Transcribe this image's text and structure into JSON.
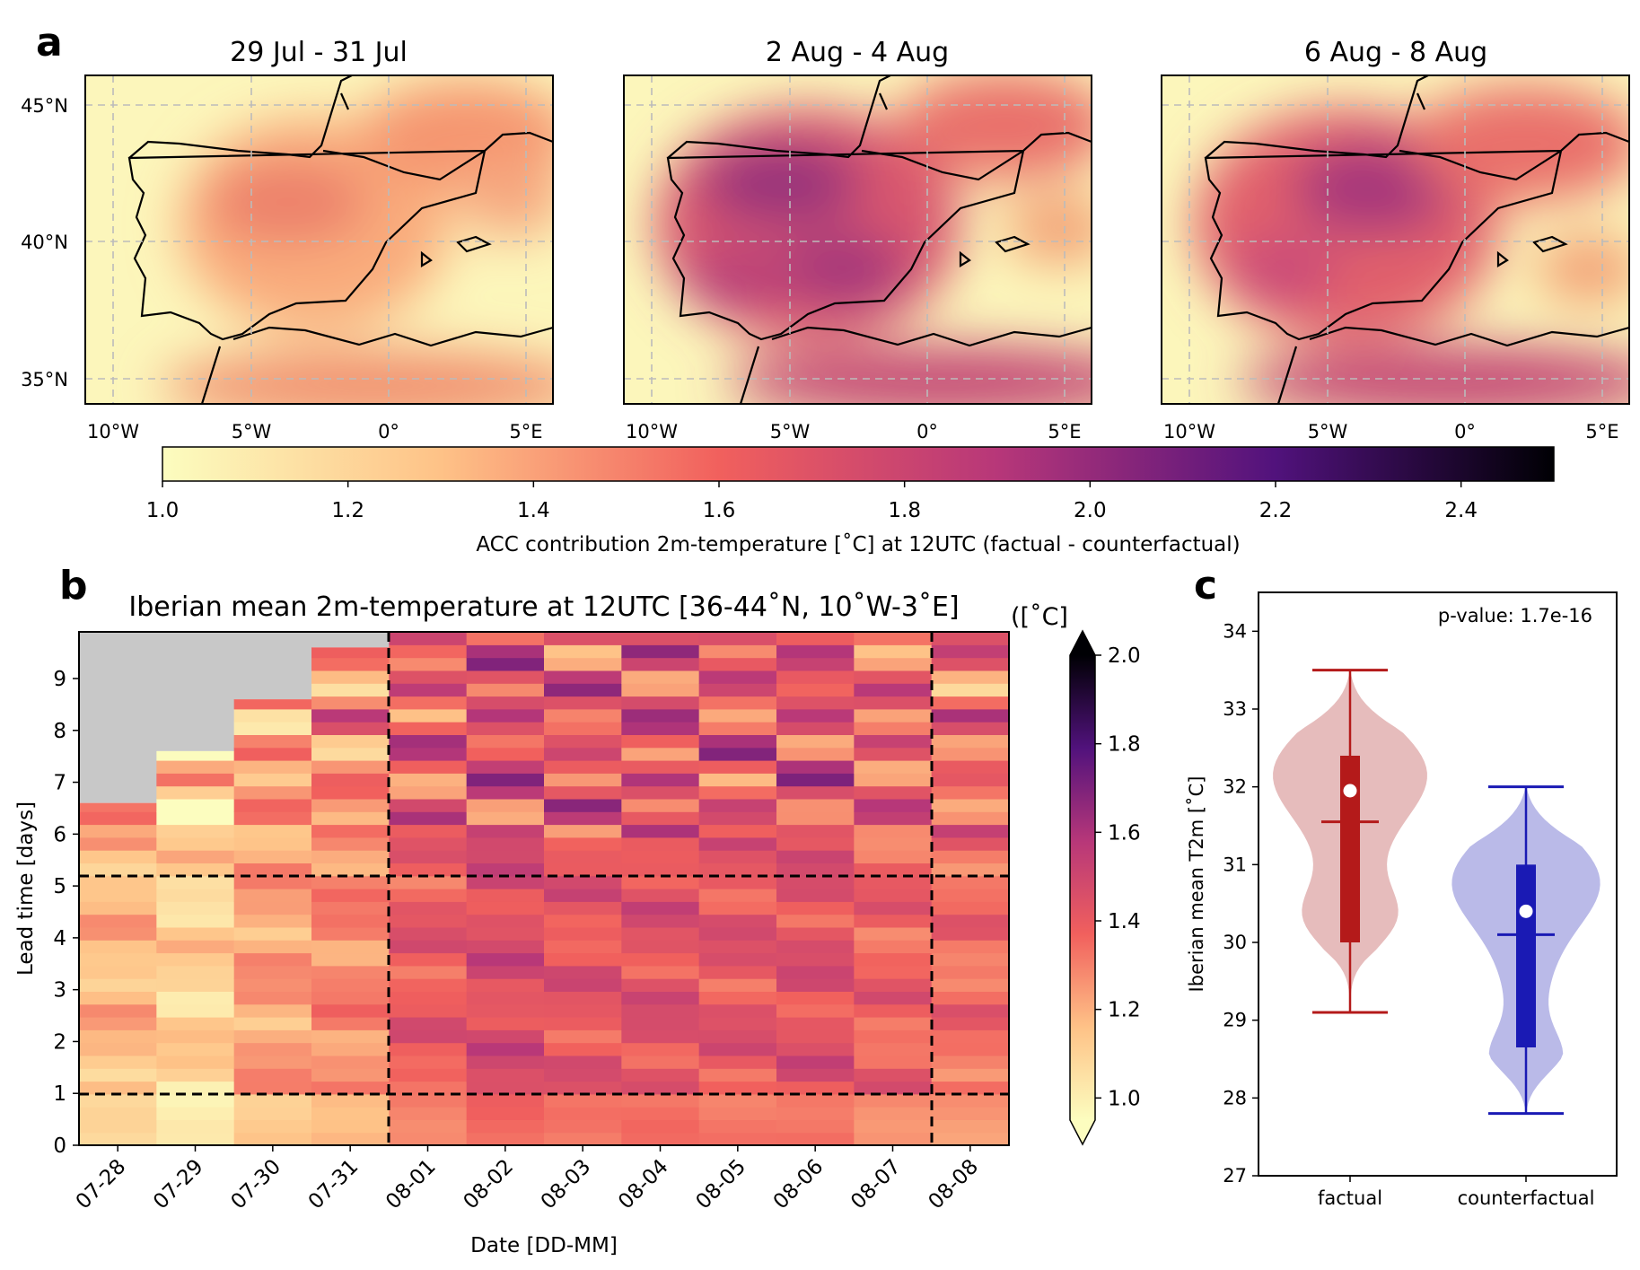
{
  "panel_letters": {
    "a": "a",
    "b": "b",
    "c": "c"
  },
  "maps": {
    "panel_titles": [
      "29 Jul - 31 Jul",
      "2 Aug - 4 Aug",
      "6 Aug - 8 Aug"
    ],
    "lat_ticks": [
      "45°N",
      "40°N",
      "35°N"
    ],
    "lon_ticks": [
      "10°W",
      "5°W",
      "0°",
      "5°E"
    ],
    "colorbar": {
      "ticks": [
        "1.0",
        "1.2",
        "1.4",
        "1.6",
        "1.8",
        "2.0",
        "2.2",
        "2.4"
      ],
      "min": 1.0,
      "max": 2.5,
      "label": "ACC contribution 2m-temperature [˚C] at 12UTC (factual - counterfactual)"
    }
  },
  "chart_data": [
    {
      "type": "heatmap",
      "title": "Iberian mean 2m-temperature at 12UTC [36-44˚N, 10˚W-3˚E]",
      "xlabel": "Date [DD-MM]",
      "ylabel": "Lead time [days]",
      "categories": [
        "07-28",
        "07-29",
        "07-30",
        "07-31",
        "08-01",
        "08-02",
        "08-03",
        "08-04",
        "08-05",
        "08-06",
        "08-07",
        "08-08"
      ],
      "yticks": [
        "0",
        "1",
        "2",
        "3",
        "4",
        "5",
        "6",
        "7",
        "8",
        "9"
      ],
      "ylim": [
        0,
        9.9
      ],
      "max_lead_days": [
        6.6,
        7.6,
        8.6,
        9.6,
        9.9,
        9.9,
        9.9,
        9.9,
        9.9,
        9.9,
        9.9,
        9.9
      ],
      "reference_lines": {
        "lead_time_days": [
          0.9,
          5.1
        ],
        "between_dates": [
          "07-31/08-01",
          "08-07/08-08"
        ]
      },
      "column_mean_values": [
        1.22,
        1.13,
        1.28,
        1.34,
        1.48,
        1.55,
        1.5,
        1.52,
        1.5,
        1.52,
        1.45,
        1.42
      ],
      "colorbar": {
        "label": "([˚C]",
        "ticks": [
          "1.0",
          "1.2",
          "1.4",
          "1.6",
          "1.8",
          "2.0"
        ],
        "min": 0.95,
        "max": 2.0
      }
    },
    {
      "type": "violin",
      "categories": [
        "factual",
        "counterfactual"
      ],
      "ylabel": "Iberian mean T2m [˚C]",
      "yticks": [
        "27",
        "28",
        "29",
        "30",
        "31",
        "32",
        "33",
        "34"
      ],
      "ylim": [
        27,
        34.5
      ],
      "annotation": "p-value: 1.7e-16",
      "series": [
        {
          "name": "factual",
          "min": 29.1,
          "q1": 30.0,
          "median": 31.95,
          "mean": 31.55,
          "q3": 32.4,
          "max": 33.5,
          "color": "#b41a1a",
          "fill": "#e3b5b5"
        },
        {
          "name": "counterfactual",
          "min": 27.8,
          "q1": 28.65,
          "median": 30.4,
          "mean": 30.1,
          "q3": 31.0,
          "max": 32.0,
          "color": "#1a1ab4",
          "fill": "#b3b3e6"
        }
      ]
    }
  ]
}
